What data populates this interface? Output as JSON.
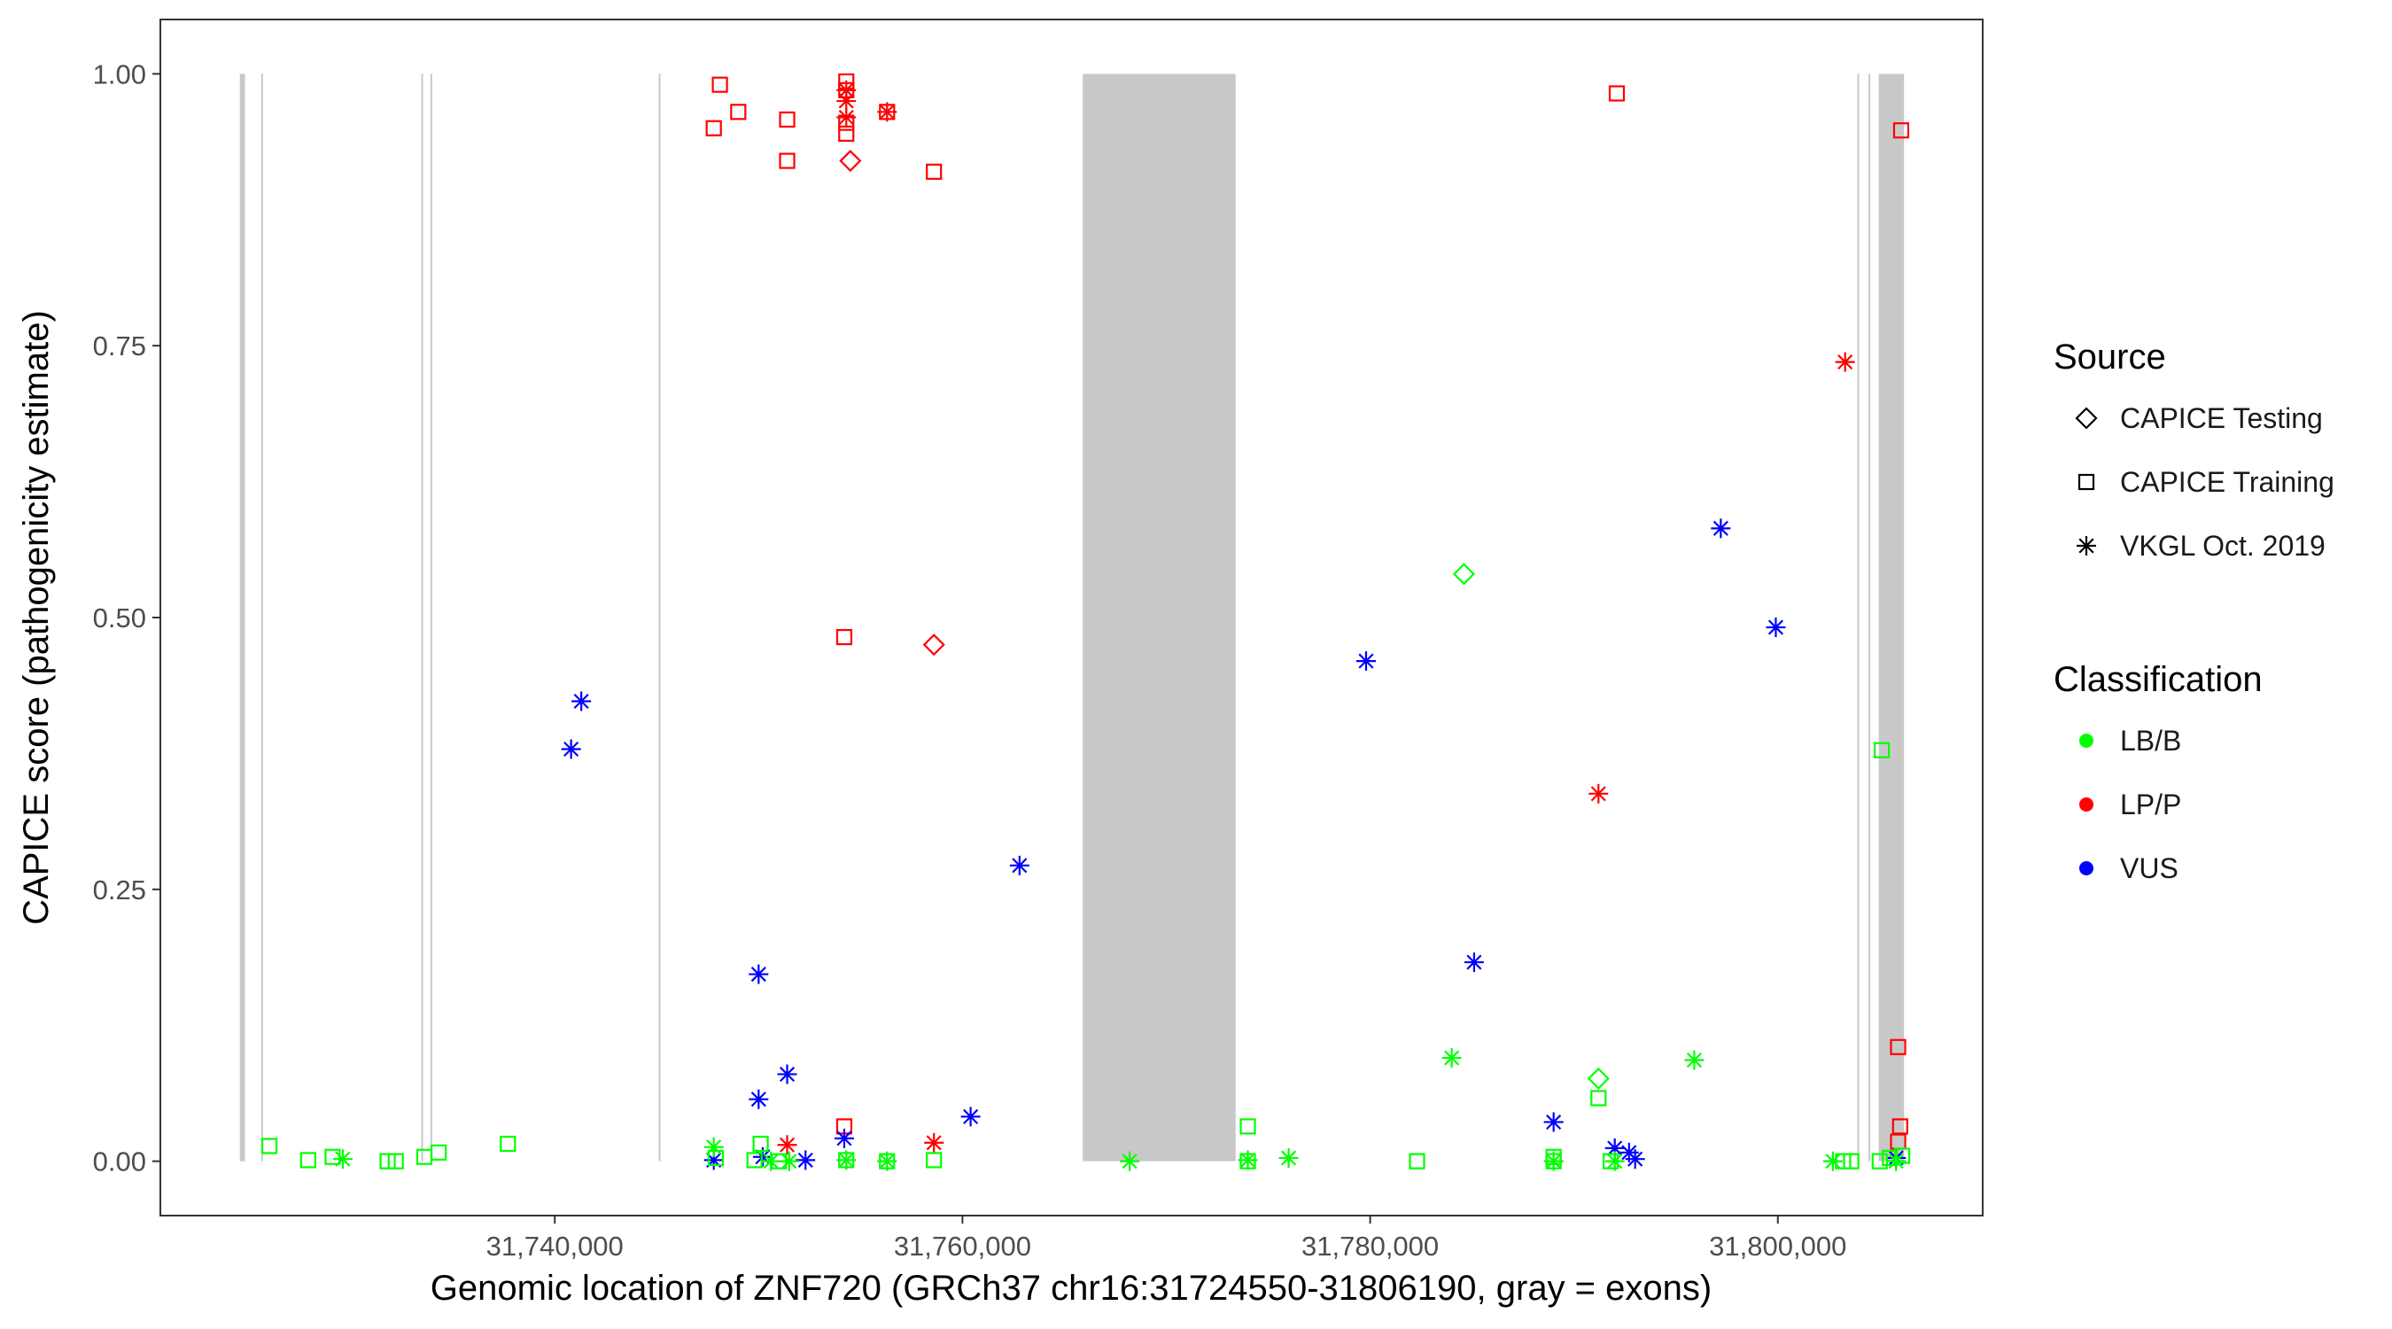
{
  "chart_data": {
    "type": "scatter",
    "title": "",
    "xlabel": "Genomic location of ZNF720 (GRCh37 chr16:31724550-31806190, gray = exons)",
    "ylabel": "CAPICE score (pathogenicity estimate)",
    "xlim": [
      31720650,
      31810050
    ],
    "ylim": [
      -0.05,
      1.05
    ],
    "x_ticks": [
      31740000,
      31760000,
      31780000,
      31800000
    ],
    "x_tick_labels": [
      "31,740,000",
      "31,760,000",
      "31,780,000",
      "31,800,000"
    ],
    "y_ticks": [
      0,
      0.25,
      0.5,
      0.75,
      1.0
    ],
    "y_tick_labels": [
      "0.00",
      "0.25",
      "0.50",
      "0.75",
      "1.00"
    ],
    "exons": [
      [
        31724550,
        31724800
      ],
      [
        31725600,
        31725650
      ],
      [
        31733450,
        31733520
      ],
      [
        31733900,
        31733970
      ],
      [
        31745100,
        31745160
      ],
      [
        31765900,
        31773400
      ],
      [
        31803900,
        31803960
      ],
      [
        31804450,
        31804510
      ],
      [
        31804950,
        31806190
      ]
    ],
    "legend": {
      "source_title": "Source",
      "sources": [
        {
          "key": "testing",
          "label": "CAPICE Testing",
          "shape": "diamond"
        },
        {
          "key": "training",
          "label": "CAPICE Training",
          "shape": "square"
        },
        {
          "key": "vkgl",
          "label": "VKGL Oct. 2019",
          "shape": "asterisk"
        }
      ],
      "class_title": "Classification",
      "classes": [
        {
          "key": "LB/B",
          "label": "LB/B",
          "color": "#00ff00"
        },
        {
          "key": "LP/P",
          "label": "LP/P",
          "color": "#ff0000"
        },
        {
          "key": "VUS",
          "label": "VUS",
          "color": "#0000ff"
        }
      ]
    },
    "points": [
      {
        "x": 31747800,
        "y": 0.95,
        "source": "training",
        "cls": "LP/P"
      },
      {
        "x": 31748100,
        "y": 0.99,
        "source": "training",
        "cls": "LP/P"
      },
      {
        "x": 31749000,
        "y": 0.965,
        "source": "training",
        "cls": "LP/P"
      },
      {
        "x": 31751400,
        "y": 0.958,
        "source": "training",
        "cls": "LP/P"
      },
      {
        "x": 31751400,
        "y": 0.92,
        "source": "training",
        "cls": "LP/P"
      },
      {
        "x": 31754300,
        "y": 0.993,
        "source": "training",
        "cls": "LP/P"
      },
      {
        "x": 31754300,
        "y": 0.985,
        "source": "training",
        "cls": "LP/P"
      },
      {
        "x": 31754300,
        "y": 0.955,
        "source": "training",
        "cls": "LP/P"
      },
      {
        "x": 31754300,
        "y": 0.945,
        "source": "training",
        "cls": "LP/P"
      },
      {
        "x": 31754300,
        "y": 0.96,
        "source": "vkgl",
        "cls": "LP/P"
      },
      {
        "x": 31754300,
        "y": 0.985,
        "source": "vkgl",
        "cls": "LP/P"
      },
      {
        "x": 31754300,
        "y": 0.975,
        "source": "vkgl",
        "cls": "LP/P"
      },
      {
        "x": 31754500,
        "y": 0.92,
        "source": "testing",
        "cls": "LP/P"
      },
      {
        "x": 31756300,
        "y": 0.965,
        "source": "vkgl",
        "cls": "LP/P"
      },
      {
        "x": 31756300,
        "y": 0.965,
        "source": "training",
        "cls": "LP/P"
      },
      {
        "x": 31758600,
        "y": 0.91,
        "source": "training",
        "cls": "LP/P"
      },
      {
        "x": 31792100,
        "y": 0.982,
        "source": "training",
        "cls": "LP/P"
      },
      {
        "x": 31806050,
        "y": 0.948,
        "source": "training",
        "cls": "LP/P"
      },
      {
        "x": 31803300,
        "y": 0.735,
        "source": "vkgl",
        "cls": "LP/P"
      },
      {
        "x": 31754200,
        "y": 0.482,
        "source": "training",
        "cls": "LP/P"
      },
      {
        "x": 31758600,
        "y": 0.475,
        "source": "testing",
        "cls": "LP/P"
      },
      {
        "x": 31791200,
        "y": 0.338,
        "source": "vkgl",
        "cls": "LP/P"
      },
      {
        "x": 31805900,
        "y": 0.105,
        "source": "training",
        "cls": "LP/P"
      },
      {
        "x": 31806000,
        "y": 0.032,
        "source": "training",
        "cls": "LP/P"
      },
      {
        "x": 31805900,
        "y": 0.018,
        "source": "training",
        "cls": "LP/P"
      },
      {
        "x": 31754200,
        "y": 0.032,
        "source": "training",
        "cls": "LP/P"
      },
      {
        "x": 31751400,
        "y": 0.015,
        "source": "vkgl",
        "cls": "LP/P"
      },
      {
        "x": 31758600,
        "y": 0.017,
        "source": "vkgl",
        "cls": "LP/P"
      },
      {
        "x": 31741300,
        "y": 0.423,
        "source": "vkgl",
        "cls": "VUS"
      },
      {
        "x": 31740800,
        "y": 0.379,
        "source": "vkgl",
        "cls": "VUS"
      },
      {
        "x": 31750000,
        "y": 0.172,
        "source": "vkgl",
        "cls": "VUS"
      },
      {
        "x": 31751400,
        "y": 0.08,
        "source": "vkgl",
        "cls": "VUS"
      },
      {
        "x": 31750000,
        "y": 0.057,
        "source": "vkgl",
        "cls": "VUS"
      },
      {
        "x": 31754200,
        "y": 0.021,
        "source": "vkgl",
        "cls": "VUS"
      },
      {
        "x": 31760400,
        "y": 0.041,
        "source": "vkgl",
        "cls": "VUS"
      },
      {
        "x": 31762800,
        "y": 0.272,
        "source": "vkgl",
        "cls": "VUS"
      },
      {
        "x": 31779800,
        "y": 0.46,
        "source": "vkgl",
        "cls": "VUS"
      },
      {
        "x": 31785100,
        "y": 0.183,
        "source": "vkgl",
        "cls": "VUS"
      },
      {
        "x": 31797200,
        "y": 0.582,
        "source": "vkgl",
        "cls": "VUS"
      },
      {
        "x": 31799900,
        "y": 0.491,
        "source": "vkgl",
        "cls": "VUS"
      },
      {
        "x": 31789000,
        "y": 0.036,
        "source": "vkgl",
        "cls": "VUS"
      },
      {
        "x": 31792000,
        "y": 0.012,
        "source": "vkgl",
        "cls": "VUS"
      },
      {
        "x": 31792700,
        "y": 0.008,
        "source": "vkgl",
        "cls": "VUS"
      },
      {
        "x": 31793000,
        "y": 0.002,
        "source": "vkgl",
        "cls": "VUS"
      },
      {
        "x": 31747800,
        "y": 0.001,
        "source": "vkgl",
        "cls": "VUS"
      },
      {
        "x": 31750200,
        "y": 0.004,
        "source": "vkgl",
        "cls": "VUS"
      },
      {
        "x": 31752300,
        "y": 0.001,
        "source": "vkgl",
        "cls": "VUS"
      },
      {
        "x": 31805800,
        "y": 0.003,
        "source": "vkgl",
        "cls": "VUS"
      },
      {
        "x": 31784600,
        "y": 0.54,
        "source": "testing",
        "cls": "LB/B"
      },
      {
        "x": 31805100,
        "y": 0.378,
        "source": "training",
        "cls": "LB/B"
      },
      {
        "x": 31784000,
        "y": 0.095,
        "source": "vkgl",
        "cls": "LB/B"
      },
      {
        "x": 31795900,
        "y": 0.093,
        "source": "vkgl",
        "cls": "LB/B"
      },
      {
        "x": 31791200,
        "y": 0.076,
        "source": "testing",
        "cls": "LB/B"
      },
      {
        "x": 31791200,
        "y": 0.058,
        "source": "training",
        "cls": "LB/B"
      },
      {
        "x": 31774000,
        "y": 0.032,
        "source": "training",
        "cls": "LB/B"
      },
      {
        "x": 31726000,
        "y": 0.014,
        "source": "training",
        "cls": "LB/B"
      },
      {
        "x": 31727900,
        "y": 0.001,
        "source": "training",
        "cls": "LB/B"
      },
      {
        "x": 31729100,
        "y": 0.004,
        "source": "training",
        "cls": "LB/B"
      },
      {
        "x": 31729600,
        "y": 0.002,
        "source": "vkgl",
        "cls": "LB/B"
      },
      {
        "x": 31731800,
        "y": 0.0,
        "source": "training",
        "cls": "LB/B"
      },
      {
        "x": 31732200,
        "y": 0.0,
        "source": "training",
        "cls": "LB/B"
      },
      {
        "x": 31733600,
        "y": 0.004,
        "source": "training",
        "cls": "LB/B"
      },
      {
        "x": 31734300,
        "y": 0.008,
        "source": "training",
        "cls": "LB/B"
      },
      {
        "x": 31737700,
        "y": 0.016,
        "source": "training",
        "cls": "LB/B"
      },
      {
        "x": 31747800,
        "y": 0.013,
        "source": "vkgl",
        "cls": "LB/B"
      },
      {
        "x": 31747900,
        "y": 0.003,
        "source": "training",
        "cls": "LB/B"
      },
      {
        "x": 31749800,
        "y": 0.001,
        "source": "training",
        "cls": "LB/B"
      },
      {
        "x": 31750100,
        "y": 0.016,
        "source": "training",
        "cls": "LB/B"
      },
      {
        "x": 31750600,
        "y": 0.0,
        "source": "vkgl",
        "cls": "LB/B"
      },
      {
        "x": 31751000,
        "y": 0.0,
        "source": "training",
        "cls": "LB/B"
      },
      {
        "x": 31751500,
        "y": 0.0,
        "source": "vkgl",
        "cls": "LB/B"
      },
      {
        "x": 31754300,
        "y": 0.001,
        "source": "training",
        "cls": "LB/B"
      },
      {
        "x": 31754300,
        "y": 0.001,
        "source": "vkgl",
        "cls": "LB/B"
      },
      {
        "x": 31756300,
        "y": 0.0,
        "source": "training",
        "cls": "LB/B"
      },
      {
        "x": 31756300,
        "y": 0.0,
        "source": "vkgl",
        "cls": "LB/B"
      },
      {
        "x": 31758600,
        "y": 0.001,
        "source": "training",
        "cls": "LB/B"
      },
      {
        "x": 31768200,
        "y": 0.0,
        "source": "vkgl",
        "cls": "LB/B"
      },
      {
        "x": 31774000,
        "y": 0.0,
        "source": "training",
        "cls": "LB/B"
      },
      {
        "x": 31774000,
        "y": 0.001,
        "source": "vkgl",
        "cls": "LB/B"
      },
      {
        "x": 31776000,
        "y": 0.003,
        "source": "vkgl",
        "cls": "LB/B"
      },
      {
        "x": 31782300,
        "y": 0.0,
        "source": "training",
        "cls": "LB/B"
      },
      {
        "x": 31789000,
        "y": 0.004,
        "source": "training",
        "cls": "LB/B"
      },
      {
        "x": 31789000,
        "y": 0.0,
        "source": "training",
        "cls": "LB/B"
      },
      {
        "x": 31789000,
        "y": 0.0,
        "source": "vkgl",
        "cls": "LB/B"
      },
      {
        "x": 31791800,
        "y": 0.0,
        "source": "training",
        "cls": "LB/B"
      },
      {
        "x": 31792000,
        "y": 0.0,
        "source": "vkgl",
        "cls": "LB/B"
      },
      {
        "x": 31802700,
        "y": 0.0,
        "source": "vkgl",
        "cls": "LB/B"
      },
      {
        "x": 31803200,
        "y": 0.0,
        "source": "training",
        "cls": "LB/B"
      },
      {
        "x": 31803600,
        "y": 0.0,
        "source": "training",
        "cls": "LB/B"
      },
      {
        "x": 31805000,
        "y": 0.0,
        "source": "training",
        "cls": "LB/B"
      },
      {
        "x": 31805500,
        "y": 0.003,
        "source": "training",
        "cls": "LB/B"
      },
      {
        "x": 31805800,
        "y": 0.0,
        "source": "vkgl",
        "cls": "LB/B"
      },
      {
        "x": 31806100,
        "y": 0.005,
        "source": "training",
        "cls": "LB/B"
      }
    ]
  }
}
